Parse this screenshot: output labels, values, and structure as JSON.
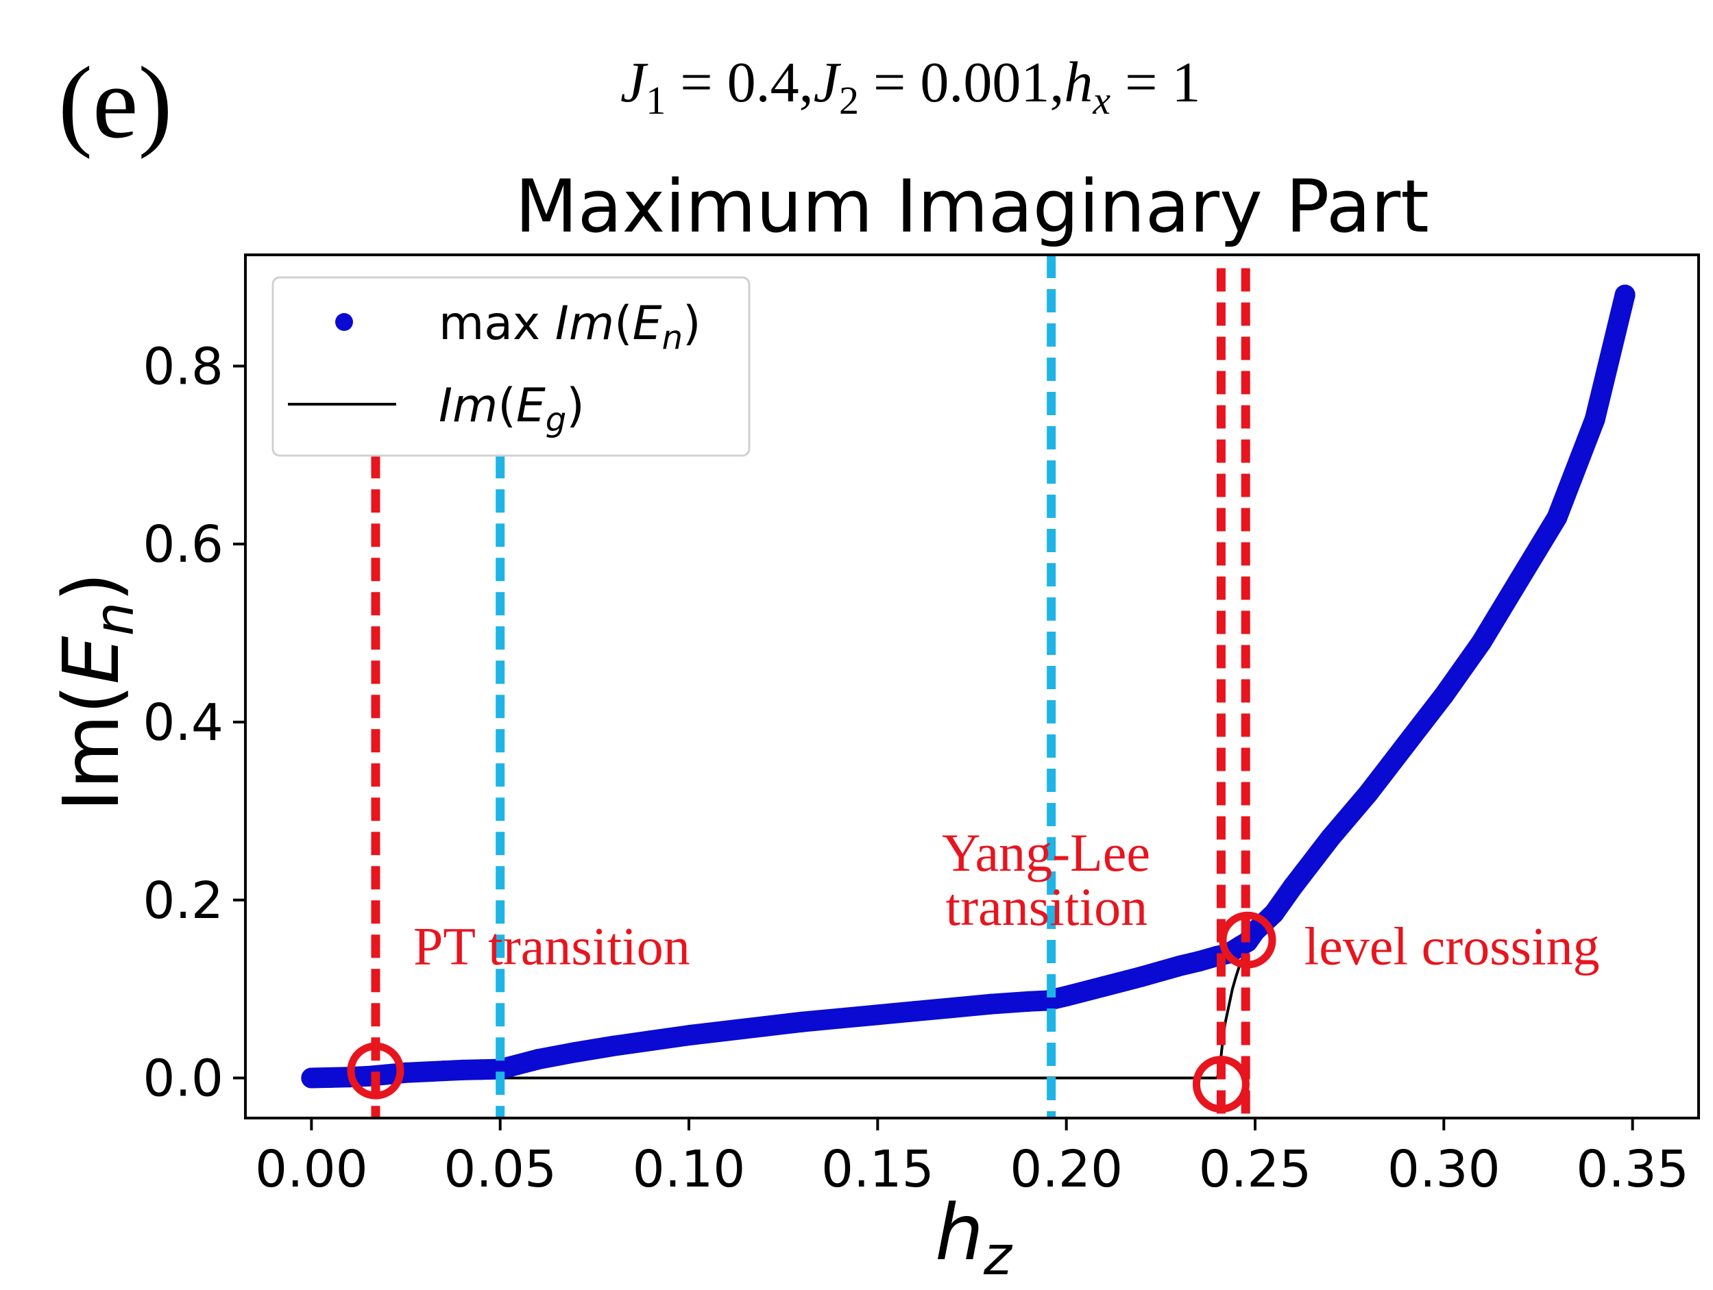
{
  "panel_label": "(e)",
  "params": {
    "j1_sym": "J",
    "j1_sub": "1",
    "j1_val": " = 0.4,",
    "j2_sym": "J",
    "j2_sub": "2",
    "j2_val": " = 0.001,",
    "hx_sym": "h",
    "hx_sub": "x",
    "hx_val": " = 1"
  },
  "colors": {
    "series_blue": "#0a0ad2",
    "ground_line": "#000000",
    "red_marker": "#e8141e",
    "cyan_line": "#1eb4e6",
    "annotation_red": "#e8141e"
  },
  "chart_data": {
    "type": "line",
    "title": "Maximum Imaginary Part",
    "xlabel_sym": "h",
    "xlabel_sub": "z",
    "ylabel_pre": "Im(",
    "ylabel_sym": "E",
    "ylabel_sub": "n",
    "ylabel_post": ")",
    "xlim": [
      -0.0175,
      0.3675
    ],
    "ylim": [
      -0.045,
      0.925
    ],
    "xticks": [
      0.0,
      0.05,
      0.1,
      0.15,
      0.2,
      0.25,
      0.3,
      0.35
    ],
    "xtick_labels": [
      "0.00",
      "0.05",
      "0.10",
      "0.15",
      "0.20",
      "0.25",
      "0.30",
      "0.35"
    ],
    "yticks": [
      0.0,
      0.2,
      0.4,
      0.6,
      0.8
    ],
    "ytick_labels": [
      "0.0",
      "0.2",
      "0.4",
      "0.6",
      "0.8"
    ],
    "legend": {
      "position": "upper-left",
      "entries": [
        {
          "pre": "max ",
          "sym": "Im",
          "paren_open": "(",
          "var": "E",
          "sub": "n",
          "paren_close": ")"
        },
        {
          "pre": "",
          "sym": "Im",
          "paren_open": "(",
          "var": "E",
          "sub": "g",
          "paren_close": ")"
        }
      ]
    },
    "series": [
      {
        "name": "max Im(E_n)",
        "style": "markers",
        "x": [
          0.0,
          0.005,
          0.01,
          0.015,
          0.02,
          0.025,
          0.03,
          0.035,
          0.04,
          0.045,
          0.05,
          0.06,
          0.07,
          0.08,
          0.09,
          0.1,
          0.11,
          0.12,
          0.13,
          0.14,
          0.15,
          0.16,
          0.17,
          0.18,
          0.19,
          0.195,
          0.2,
          0.21,
          0.22,
          0.23,
          0.235,
          0.24,
          0.243,
          0.246,
          0.248,
          0.25,
          0.255,
          0.26,
          0.27,
          0.28,
          0.29,
          0.3,
          0.31,
          0.32,
          0.33,
          0.34,
          0.348
        ],
        "y": [
          0.0,
          0.0005,
          0.001,
          0.002,
          0.004,
          0.006,
          0.007,
          0.008,
          0.009,
          0.0095,
          0.01,
          0.021,
          0.029,
          0.036,
          0.042,
          0.048,
          0.053,
          0.058,
          0.063,
          0.067,
          0.071,
          0.075,
          0.079,
          0.083,
          0.086,
          0.087,
          0.092,
          0.103,
          0.114,
          0.126,
          0.131,
          0.137,
          0.14,
          0.148,
          0.153,
          0.165,
          0.185,
          0.215,
          0.27,
          0.32,
          0.375,
          0.43,
          0.49,
          0.56,
          0.63,
          0.74,
          0.88
        ]
      },
      {
        "name": "Im(E_g)",
        "style": "line",
        "x": [
          0.0,
          0.05,
          0.1,
          0.15,
          0.2,
          0.24,
          0.2405,
          0.241,
          0.2415,
          0.242,
          0.243,
          0.244,
          0.245,
          0.246,
          0.247,
          0.248,
          0.25,
          0.26,
          0.28,
          0.3,
          0.32,
          0.34,
          0.348
        ],
        "y": [
          0.0,
          0.0,
          0.0,
          0.0,
          0.0,
          0.0,
          0.01,
          0.025,
          0.045,
          0.06,
          0.08,
          0.1,
          0.115,
          0.128,
          0.138,
          0.148,
          0.16,
          0.215,
          0.32,
          0.43,
          0.56,
          0.74,
          0.88
        ]
      }
    ],
    "vlines": [
      {
        "x": 0.017,
        "color": "red",
        "y_top": 0.7
      },
      {
        "x": 0.05,
        "color": "cyan",
        "y_top": 0.7
      },
      {
        "x": 0.196,
        "color": "cyan",
        "y_top": 0.925
      },
      {
        "x": 0.241,
        "color": "red",
        "y_top": 0.91
      },
      {
        "x": 0.2475,
        "color": "red",
        "y_top": 0.91
      }
    ],
    "circles": [
      {
        "x": 0.017,
        "y": 0.008
      },
      {
        "x": 0.241,
        "y": -0.007
      },
      {
        "x": 0.248,
        "y": 0.155
      }
    ],
    "annotations": [
      {
        "text": "PT transition",
        "x": 0.027,
        "y": 0.128
      },
      {
        "text": "Yang-Lee",
        "x": 0.167,
        "y": 0.233
      },
      {
        "text": "transition",
        "x": 0.168,
        "y": 0.172
      },
      {
        "text": "level crossing",
        "x": 0.263,
        "y": 0.128
      }
    ]
  }
}
